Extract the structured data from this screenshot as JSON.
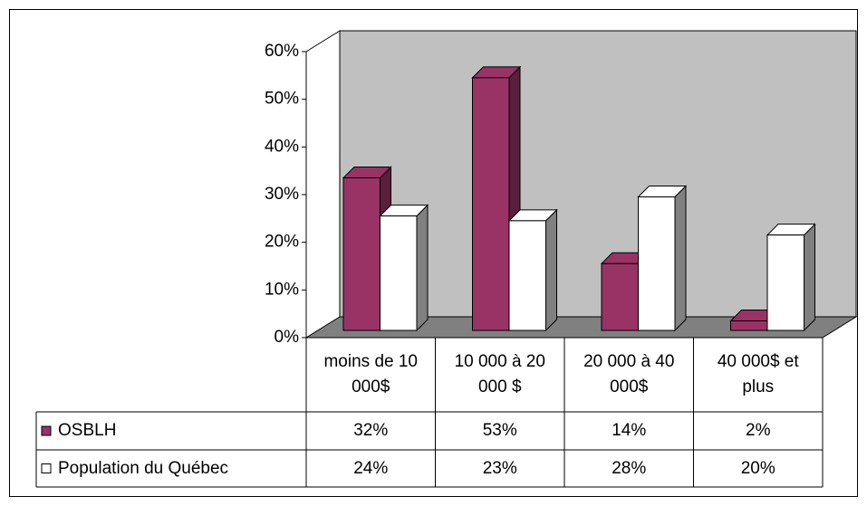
{
  "chart_data": {
    "type": "bar3d",
    "categories": [
      "moins de 10 000$",
      "10 000 à 20 000 $",
      "20 000 à 40 000$",
      "40 000$ et plus"
    ],
    "series": [
      {
        "name": "OSBLH",
        "color": "#993366",
        "values": [
          32,
          53,
          14,
          2
        ],
        "value_labels": [
          "32%",
          "53%",
          "14%",
          "2%"
        ]
      },
      {
        "name": "Population du Québec",
        "color": "#ffffff",
        "values": [
          24,
          23,
          28,
          20
        ],
        "value_labels": [
          "24%",
          "23%",
          "28%",
          "20%"
        ]
      }
    ],
    "ylim": [
      0,
      60
    ],
    "yticks": [
      {
        "value": 0,
        "label": "0%"
      },
      {
        "value": 10,
        "label": "10%"
      },
      {
        "value": 20,
        "label": "20%"
      },
      {
        "value": 30,
        "label": "30%"
      },
      {
        "value": 40,
        "label": "40%"
      },
      {
        "value": 50,
        "label": "50%"
      },
      {
        "value": 60,
        "label": "60%"
      }
    ],
    "legend": "table"
  }
}
